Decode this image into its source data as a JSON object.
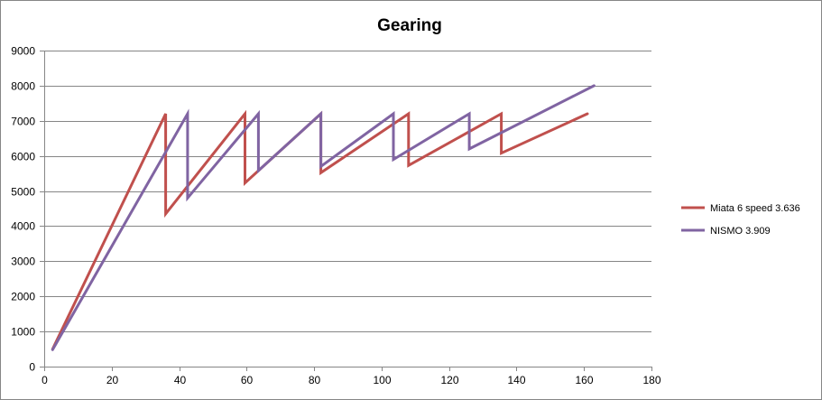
{
  "chart_data": {
    "type": "line",
    "title": "Gearing",
    "xlabel": "",
    "ylabel": "",
    "xlim": [
      0,
      180
    ],
    "ylim": [
      0,
      9000
    ],
    "x_ticks": [
      0,
      20,
      40,
      60,
      80,
      100,
      120,
      140,
      160,
      180
    ],
    "y_ticks": [
      0,
      1000,
      2000,
      3000,
      4000,
      5000,
      6000,
      7000,
      8000,
      9000
    ],
    "grid": "horizontal",
    "legend_position": "right",
    "series": [
      {
        "name": "Miata 6 speed 3.636",
        "color": "#C0504D",
        "points": [
          [
            2.5,
            500
          ],
          [
            36,
            7200
          ],
          [
            36,
            4350
          ],
          [
            59.5,
            7200
          ],
          [
            59.5,
            5230
          ],
          [
            82,
            7200
          ],
          [
            82,
            5520
          ],
          [
            108,
            7200
          ],
          [
            108,
            5730
          ],
          [
            135.5,
            7200
          ],
          [
            135.5,
            6080
          ],
          [
            161,
            7200
          ]
        ]
      },
      {
        "name": "NISMO 3.909",
        "color": "#8064A2",
        "points": [
          [
            2.5,
            480
          ],
          [
            42.5,
            7200
          ],
          [
            42.5,
            4800
          ],
          [
            63.5,
            7200
          ],
          [
            63.5,
            5580
          ],
          [
            82,
            7200
          ],
          [
            82,
            5700
          ],
          [
            103.5,
            7200
          ],
          [
            103.5,
            5900
          ],
          [
            126,
            7200
          ],
          [
            126,
            6200
          ],
          [
            163,
            8000
          ]
        ]
      }
    ]
  }
}
